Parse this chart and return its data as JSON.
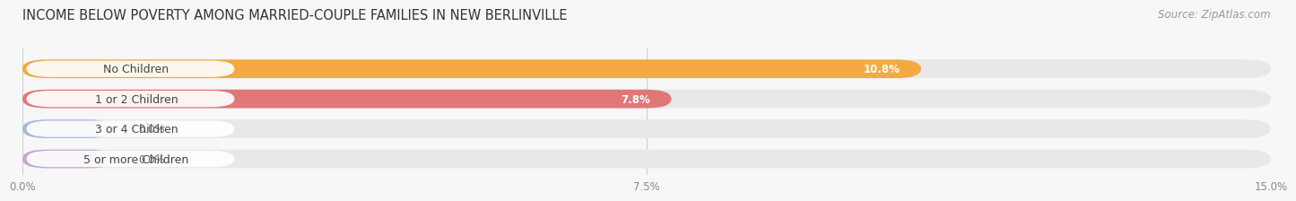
{
  "title": "INCOME BELOW POVERTY AMONG MARRIED-COUPLE FAMILIES IN NEW BERLINVILLE",
  "source": "Source: ZipAtlas.com",
  "categories": [
    "No Children",
    "1 or 2 Children",
    "3 or 4 Children",
    "5 or more Children"
  ],
  "values": [
    10.8,
    7.8,
    0.0,
    0.0
  ],
  "bar_colors": [
    "#F5A942",
    "#E07878",
    "#A8B8D8",
    "#C4A8D0"
  ],
  "xlim": [
    0,
    15.0
  ],
  "xticks": [
    0.0,
    7.5,
    15.0
  ],
  "xticklabels": [
    "0.0%",
    "7.5%",
    "15.0%"
  ],
  "bg_color": "#f7f7f7",
  "bar_bg_color": "#e8e8e8",
  "title_fontsize": 10.5,
  "source_fontsize": 8.5,
  "label_fontsize": 9,
  "value_fontsize": 8.5,
  "tick_fontsize": 8.5,
  "label_pill_color": "#ffffff",
  "label_text_color": "#444444",
  "value_inside_color": "#ffffff",
  "value_outside_color": "#666666"
}
